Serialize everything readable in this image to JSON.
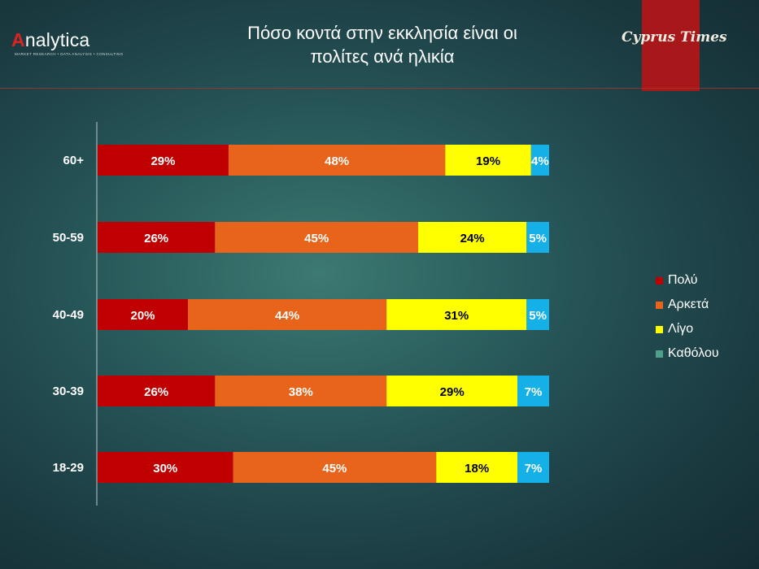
{
  "header": {
    "logo_mark": "A",
    "logo_text": "nalytica",
    "logo_tagline": "MARKET RESEARCH • DATA ANALYSIS • CONSULTING",
    "title_line1": "Πόσο κοντά στην εκκλησία είναι οι",
    "title_line2": "πολίτες ανά ηλικία",
    "brand": "Cyprus Times"
  },
  "colors": {
    "brand_red": "#a8171a",
    "series": [
      "#c00000",
      "#e8641b",
      "#ffff00",
      "#16b0e8"
    ]
  },
  "chart_data": {
    "type": "bar",
    "orientation": "horizontal",
    "stacked": true,
    "categories": [
      "60+",
      "50-59",
      "40-49",
      "30-39",
      "18-29"
    ],
    "series": [
      {
        "name": "Πολύ",
        "values": [
          29,
          26,
          20,
          26,
          30
        ]
      },
      {
        "name": "Αρκετά",
        "values": [
          48,
          45,
          44,
          38,
          45
        ]
      },
      {
        "name": "Λίγο",
        "values": [
          19,
          24,
          31,
          29,
          18
        ]
      },
      {
        "name": "Καθόλου",
        "values": [
          4,
          5,
          5,
          7,
          7
        ]
      }
    ],
    "value_suffix": "%",
    "legend_swatch_colors": [
      "#c00000",
      "#e8641b",
      "#ffff00",
      "#4fa08a"
    ],
    "legend_position": "right",
    "grid": false
  }
}
